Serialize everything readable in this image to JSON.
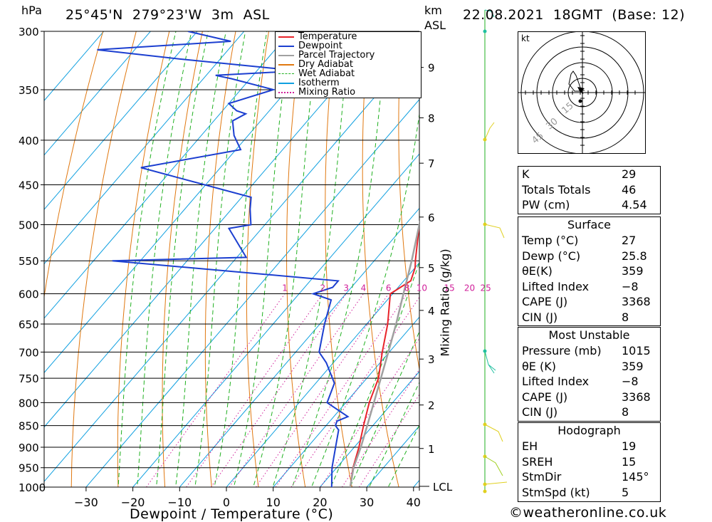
{
  "header": {
    "units_pressure": "hPa",
    "location": "25°45'N  279°23'W  3m  ASL",
    "units_height": "km",
    "units_height_ref": "ASL",
    "datetime": "22.08.2021  18GMT  (Base: 12)"
  },
  "legend": [
    "Temperature",
    "Dewpoint",
    "Parcel Trajectory",
    "Dry Adiabat",
    "Wet Adiabat",
    "Isotherm",
    "Mixing Ratio"
  ],
  "colors": {
    "temperature": "#e8232a",
    "dewpoint": "#1c3fd0",
    "parcel": "#a0a0a0",
    "dry_adiabat": "#e07810",
    "wet_adiabat": "#20b020",
    "isotherm": "#10a0e0",
    "mixing_ratio": "#d0209a"
  },
  "chart_data": {
    "type": "line",
    "title": "",
    "xlabel": "Dewpoint / Temperature (°C)",
    "ylabel": "hPa",
    "secondary_ylabel": "Mixing Ratio (g/kg)",
    "xlim": [
      -40,
      40
    ],
    "ylim": [
      1000,
      300
    ],
    "x_ticks": [
      "−30",
      "−20",
      "−10",
      "0",
      "10",
      "20",
      "30",
      "40"
    ],
    "pressure_ticks": [
      300,
      350,
      400,
      450,
      500,
      550,
      600,
      650,
      700,
      750,
      800,
      850,
      900,
      950,
      1000
    ],
    "height_ticks": [
      {
        "km": "9",
        "p": 330
      },
      {
        "km": "8",
        "p": 377
      },
      {
        "km": "7",
        "p": 425
      },
      {
        "km": "6",
        "p": 490
      },
      {
        "km": "5",
        "p": 560
      },
      {
        "km": "4",
        "p": 627
      },
      {
        "km": "3",
        "p": 713
      },
      {
        "km": "2",
        "p": 805
      },
      {
        "km": "1",
        "p": 903
      }
    ],
    "lcl_label": "LCL",
    "lcl_pressure": 998,
    "mixing_ratio_labels": [
      "1",
      "2",
      "3",
      "4",
      "6",
      "8",
      "10",
      "15",
      "20",
      "25"
    ],
    "mixing_ratio_values": [
      1,
      2,
      3,
      4,
      6,
      8,
      10,
      15,
      20,
      25
    ],
    "series": [
      {
        "name": "Temperature",
        "points": [
          [
            1013,
            27.2
          ],
          [
            950,
            23.5
          ],
          [
            900,
            21.0
          ],
          [
            850,
            18.0
          ],
          [
            800,
            15.0
          ],
          [
            750,
            12.5
          ],
          [
            700,
            8.5
          ],
          [
            650,
            4.5
          ],
          [
            600,
            -0.5
          ],
          [
            580,
            1.5
          ],
          [
            560,
            0.0
          ],
          [
            550,
            -1.2
          ],
          [
            500,
            -7.0
          ],
          [
            450,
            -12.5
          ],
          [
            400,
            -20.0
          ],
          [
            370,
            -25.0
          ],
          [
            350,
            -28.5
          ],
          [
            330,
            -31.0
          ],
          [
            300,
            -36.0
          ]
        ]
      },
      {
        "name": "Dewpoint",
        "points": [
          [
            1013,
            25.8
          ],
          [
            1000,
            22.5
          ],
          [
            950,
            19.0
          ],
          [
            900,
            16.0
          ],
          [
            860,
            13.5
          ],
          [
            850,
            12.0
          ],
          [
            840,
            11.5
          ],
          [
            830,
            13.0
          ],
          [
            800,
            6.0
          ],
          [
            760,
            4.0
          ],
          [
            720,
            -1.5
          ],
          [
            700,
            -5.0
          ],
          [
            650,
            -9.0
          ],
          [
            610,
            -12.0
          ],
          [
            600,
            -17.0
          ],
          [
            590,
            -14.0
          ],
          [
            580,
            -14.0
          ],
          [
            550,
            -66.0
          ],
          [
            545,
            -38.0
          ],
          [
            505,
            -47.0
          ],
          [
            500,
            -43.0
          ],
          [
            480,
            -46.0
          ],
          [
            465,
            -48.0
          ],
          [
            430,
            -77.0
          ],
          [
            410,
            -59.0
          ],
          [
            395,
            -63.0
          ],
          [
            380,
            -66.0
          ],
          [
            373,
            -64.5
          ],
          [
            370,
            -67.0
          ],
          [
            363,
            -70.0
          ],
          [
            350,
            -63.0
          ],
          [
            340,
            -74.0
          ],
          [
            337,
            -78.0
          ],
          [
            333,
            -61.0
          ],
          [
            323,
            -88.0
          ],
          [
            315,
            -108.0
          ],
          [
            308,
            -81.0
          ],
          [
            300,
            -92.0
          ]
        ]
      },
      {
        "name": "Parcel Trajectory",
        "points": [
          [
            1013,
            27.2
          ],
          [
            950,
            23.6
          ],
          [
            900,
            21.4
          ],
          [
            850,
            18.8
          ],
          [
            800,
            16.0
          ],
          [
            750,
            13.0
          ],
          [
            700,
            9.8
          ],
          [
            650,
            6.3
          ],
          [
            600,
            2.3
          ],
          [
            550,
            -2.0
          ],
          [
            500,
            -7.0
          ],
          [
            450,
            -12.5
          ],
          [
            400,
            -19.0
          ],
          [
            370,
            -23.5
          ],
          [
            350,
            -27.0
          ],
          [
            330,
            -31.0
          ]
        ]
      }
    ]
  },
  "hodograph": {
    "unit": "kt",
    "ring_labels": [
      "15",
      "30",
      "45"
    ]
  },
  "indices": {
    "top": [
      {
        "label": "K",
        "value": "29"
      },
      {
        "label": "Totals Totals",
        "value": "46"
      },
      {
        "label": "PW (cm)",
        "value": "4.54"
      }
    ],
    "surface": {
      "title": "Surface",
      "rows": [
        {
          "label": "Temp (°C)",
          "value": "27"
        },
        {
          "label": "Dewp (°C)",
          "value": "25.8"
        },
        {
          "label": "θE(K)",
          "value": "359"
        },
        {
          "label": "Lifted Index",
          "value": "−8"
        },
        {
          "label": "CAPE (J)",
          "value": "3368"
        },
        {
          "label": "CIN (J)",
          "value": "8"
        }
      ]
    },
    "most_unstable": {
      "title": "Most Unstable",
      "rows": [
        {
          "label": "Pressure (mb)",
          "value": "1015"
        },
        {
          "label": "θE (K)",
          "value": "359"
        },
        {
          "label": "Lifted Index",
          "value": "−8"
        },
        {
          "label": "CAPE (J)",
          "value": "3368"
        },
        {
          "label": "CIN (J)",
          "value": "8"
        }
      ]
    },
    "hodograph": {
      "title": "Hodograph",
      "rows": [
        {
          "label": "EH",
          "value": "19"
        },
        {
          "label": "SREH",
          "value": "15"
        },
        {
          "label": "StmDir",
          "value": "145°"
        },
        {
          "label": "StmSpd (kt)",
          "value": "5"
        }
      ]
    }
  },
  "footer": "©weatheronline.co.uk"
}
